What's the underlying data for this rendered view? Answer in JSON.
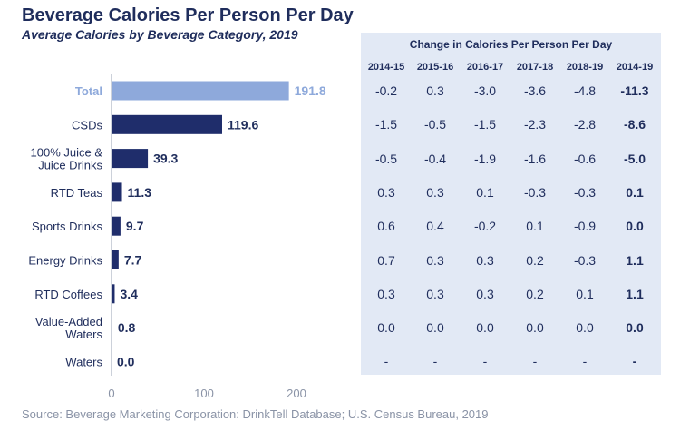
{
  "title": "Beverage Calories Per Person Per Day",
  "subtitle": "Average Calories by Beverage Category, 2019",
  "source": "Source: Beverage Marketing Corporation: DrinkTell Database; U.S. Census Bureau, 2019",
  "colors": {
    "bar": "#1f2d6b",
    "highlight": "#8ea9db",
    "panel": "#e2e9f5"
  },
  "chart_data": {
    "type": "bar",
    "orientation": "horizontal",
    "title": "Beverage Calories Per Person Per Day",
    "subtitle": "Average Calories by Beverage Category, 2019",
    "categories": [
      [
        "Total"
      ],
      [
        "CSDs"
      ],
      [
        "100% Juice &",
        "Juice Drinks"
      ],
      [
        "RTD Teas"
      ],
      [
        "Sports Drinks"
      ],
      [
        "Energy Drinks"
      ],
      [
        "RTD Coffees"
      ],
      [
        "Value-Added",
        "Waters"
      ],
      [
        "Waters"
      ]
    ],
    "values": [
      191.8,
      119.6,
      39.3,
      11.3,
      9.7,
      7.7,
      3.4,
      0.8,
      0.0
    ],
    "value_labels": [
      "191.8",
      "119.6",
      "39.3",
      "11.3",
      "9.7",
      "7.7",
      "3.4",
      "0.8",
      "0.0"
    ],
    "highlight_index": 0,
    "xlim": [
      0,
      200
    ],
    "xticks": [
      0,
      100,
      200
    ],
    "xlabel": "",
    "ylabel": ""
  },
  "table": {
    "title": "Change in Calories Per Person Per Day",
    "columns": [
      "2014-15",
      "2015-16",
      "2016-17",
      "2017-18",
      "2018-19",
      "2014-19"
    ],
    "rows": [
      [
        "-0.2",
        "0.3",
        "-3.0",
        "-3.6",
        "-4.8",
        "-11.3"
      ],
      [
        "-1.5",
        "-0.5",
        "-1.5",
        "-2.3",
        "-2.8",
        "-8.6"
      ],
      [
        "-0.5",
        "-0.4",
        "-1.9",
        "-1.6",
        "-0.6",
        "-5.0"
      ],
      [
        "0.3",
        "0.3",
        "0.1",
        "-0.3",
        "-0.3",
        "0.1"
      ],
      [
        "0.6",
        "0.4",
        "-0.2",
        "0.1",
        "-0.9",
        "0.0"
      ],
      [
        "0.7",
        "0.3",
        "0.3",
        "0.2",
        "-0.3",
        "1.1"
      ],
      [
        "0.3",
        "0.3",
        "0.3",
        "0.2",
        "0.1",
        "1.1"
      ],
      [
        "0.0",
        "0.0",
        "0.0",
        "0.0",
        "0.0",
        "0.0"
      ],
      [
        "-",
        "-",
        "-",
        "-",
        "-",
        "-"
      ]
    ]
  }
}
